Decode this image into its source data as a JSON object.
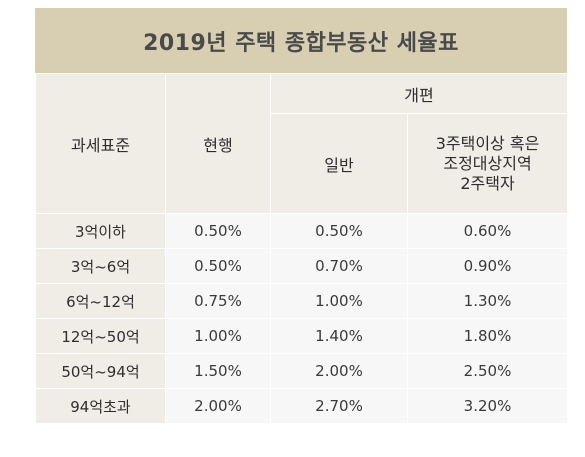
{
  "title": "2019년 주택 종합부동산 세율표",
  "headers": {
    "base": "과세표준",
    "current": "현행",
    "reform": "개편",
    "general": "일반",
    "multi_lines": [
      "3주택이상 혹은",
      "조정대상지역",
      "2주택자"
    ]
  },
  "rows": [
    {
      "base": "3억이하",
      "current": "0.50%",
      "general": "0.50%",
      "multi": "0.60%"
    },
    {
      "base": "3억~6억",
      "current": "0.50%",
      "general": "0.70%",
      "multi": "0.90%"
    },
    {
      "base": "6억~12억",
      "current": "0.75%",
      "general": "1.00%",
      "multi": "1.30%"
    },
    {
      "base": "12억~50억",
      "current": "1.00%",
      "general": "1.40%",
      "multi": "1.80%"
    },
    {
      "base": "50억~94억",
      "current": "1.50%",
      "general": "2.00%",
      "multi": "2.50%"
    },
    {
      "base": "94억초과",
      "current": "2.00%",
      "general": "2.70%",
      "multi": "3.20%"
    }
  ],
  "colors": {
    "title_bg": "#d8cfb3",
    "header_bg": "#f0ede6",
    "cell_bg": "#f7f7f7"
  }
}
